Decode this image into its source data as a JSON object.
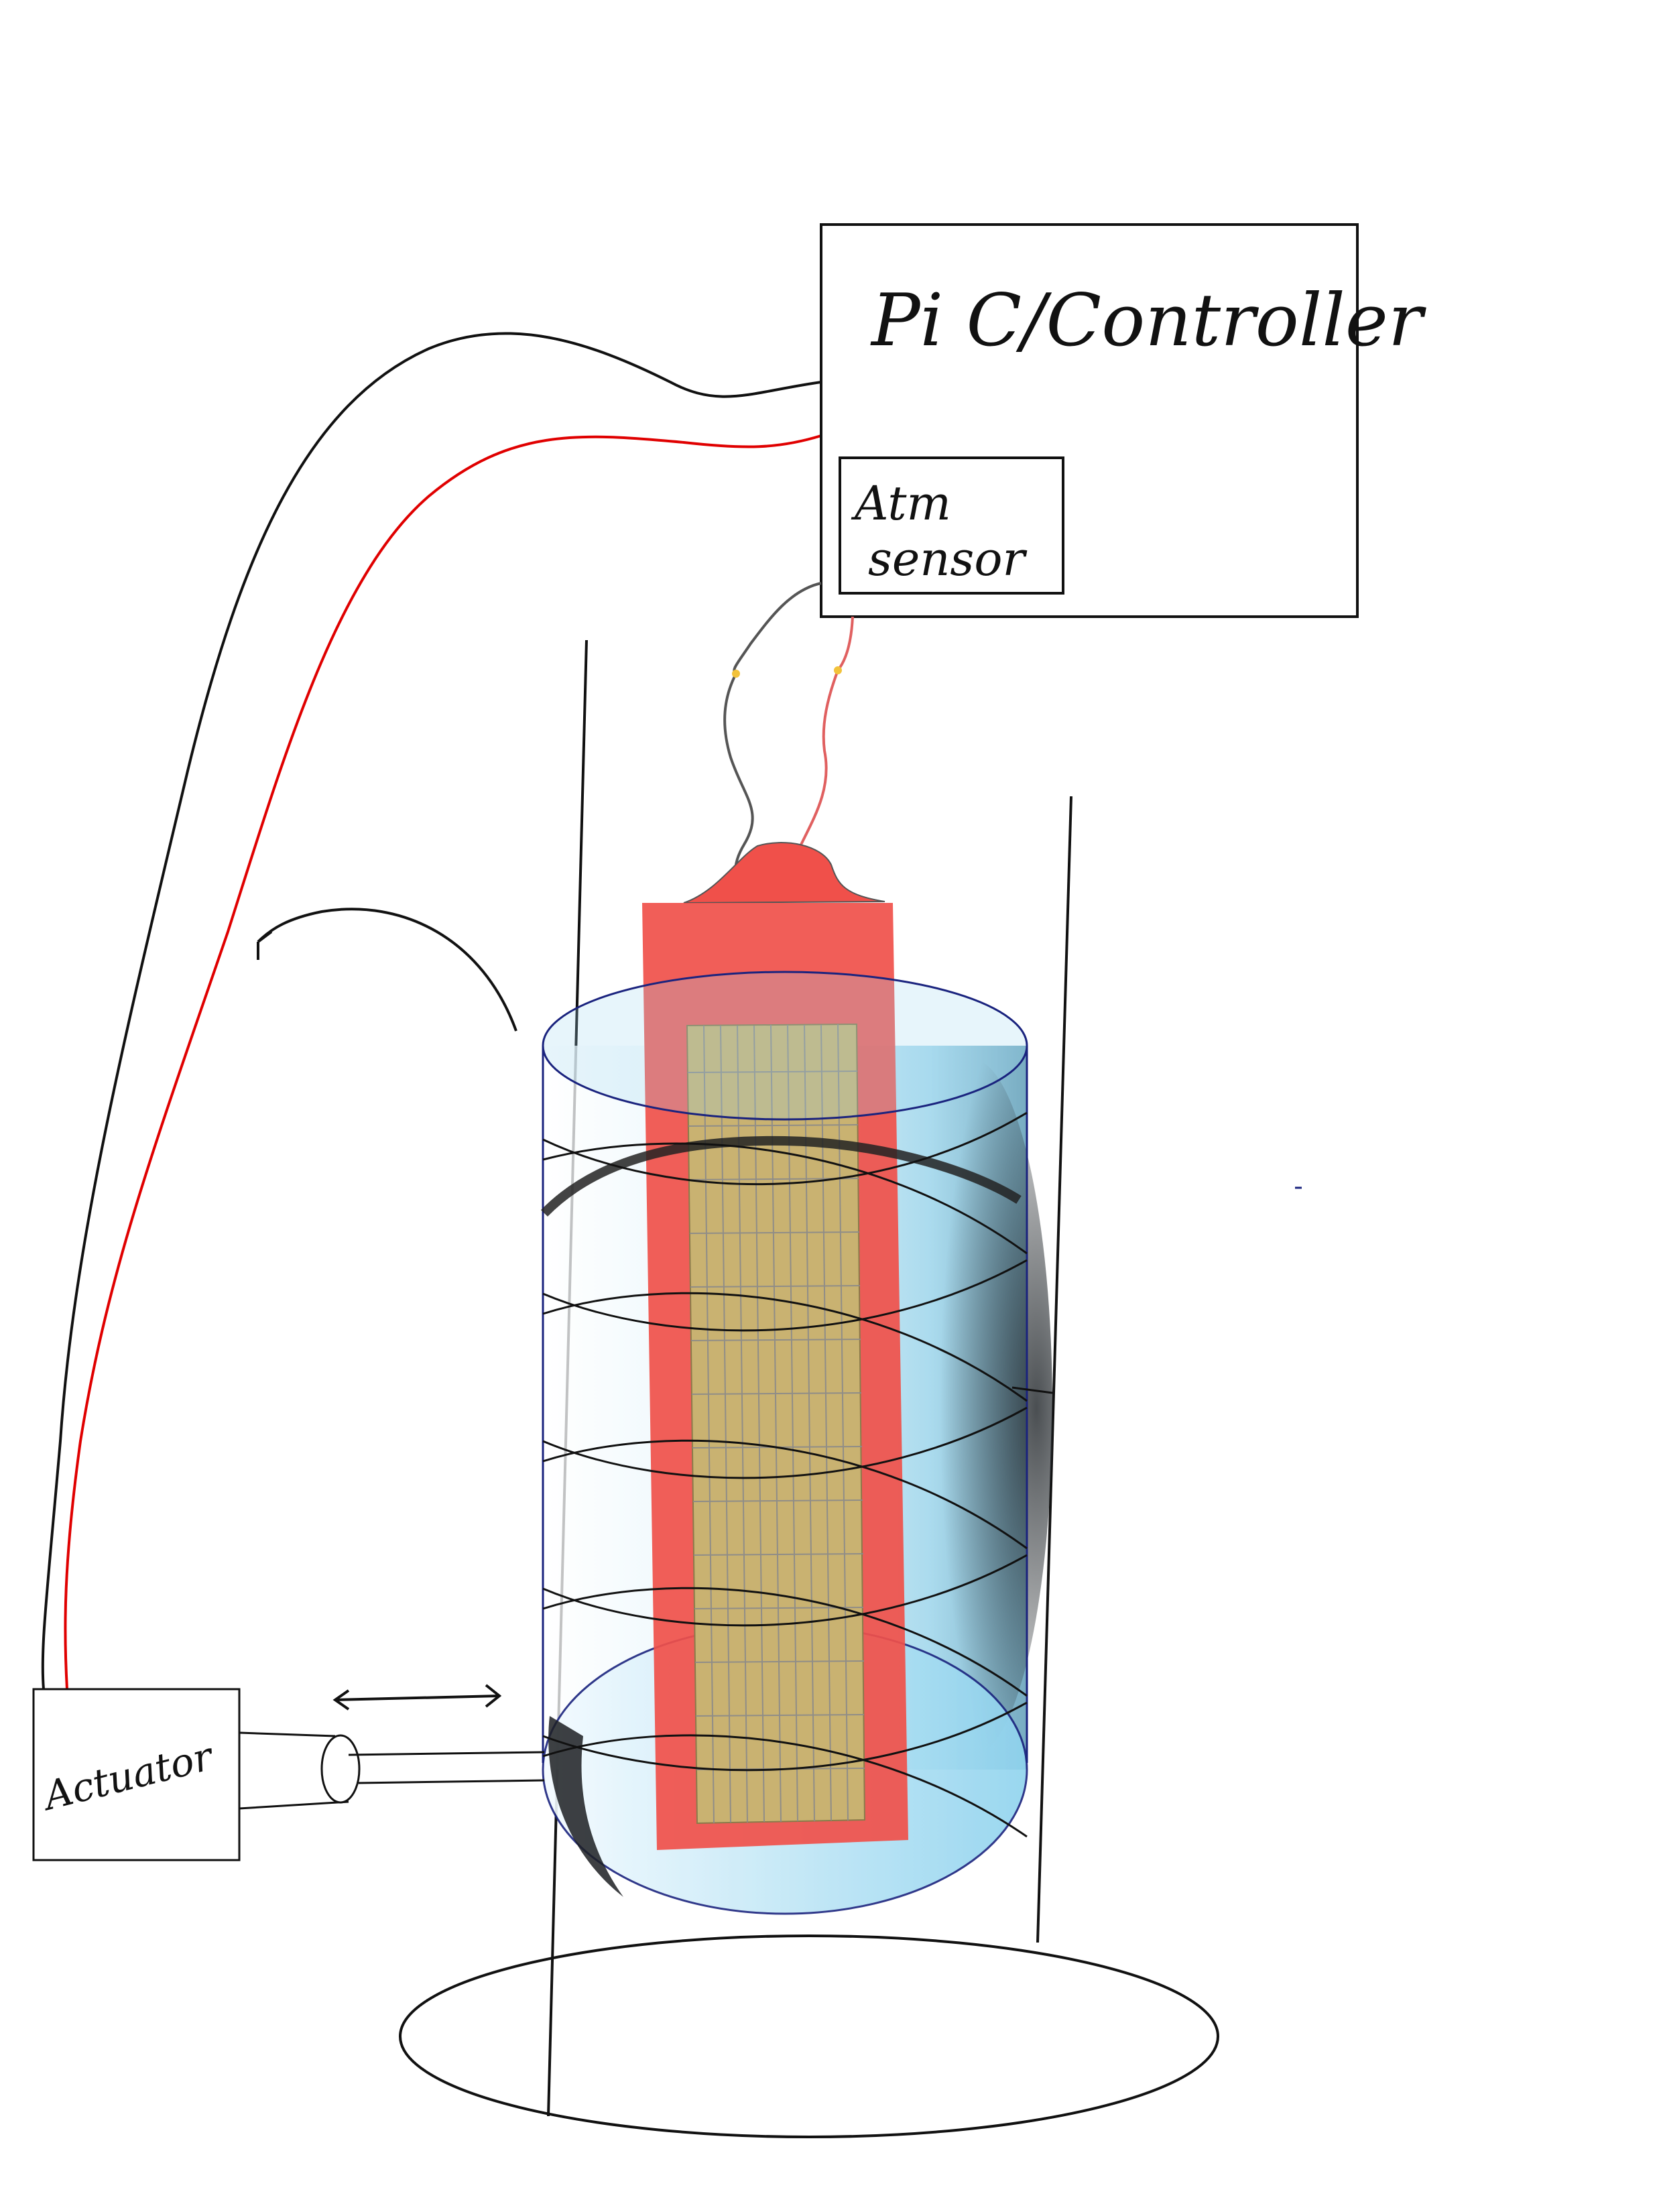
{
  "labels": {
    "controller": "Pi C/Controller",
    "sensor_line1": "Atm",
    "sensor_line2": "sensor",
    "actuator": "Actuator"
  },
  "colors": {
    "wire_black": "#111111",
    "wire_red": "#e00000",
    "heater_pad": "#f0504a",
    "grid_panel": "#c9b271",
    "cylinder_light": "#e8f6fc",
    "cylinder_mid": "#9fd7ee",
    "cylinder_edge": "#1a237e",
    "outline": "#111111"
  },
  "icons": {
    "rotation_arrow": "curved-arrow-icon",
    "motion_arrow": "double-headed-arrow-icon"
  }
}
